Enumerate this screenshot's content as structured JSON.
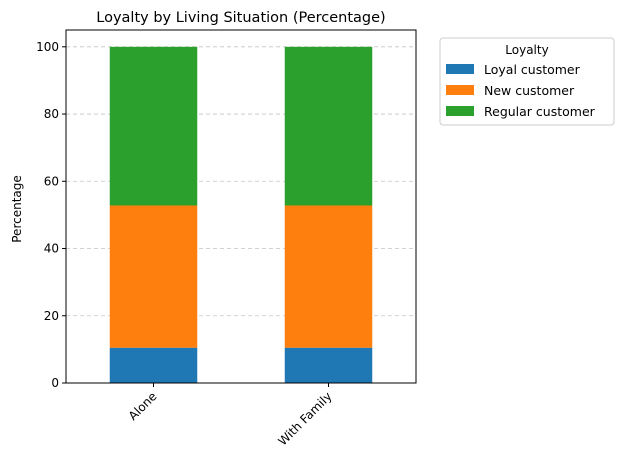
{
  "chart_data": {
    "type": "bar",
    "stacked": true,
    "title": "Loyalty by Living Situation (Percentage)",
    "xlabel": "",
    "ylabel": "Percentage",
    "categories": [
      "Alone",
      "With Family"
    ],
    "series": [
      {
        "name": "Loyal customer",
        "color": "#1f77b4",
        "values": [
          10.5,
          10.5
        ]
      },
      {
        "name": "New customer",
        "color": "#ff7f0e",
        "values": [
          42.3,
          42.3
        ]
      },
      {
        "name": "Regular customer",
        "color": "#2ca02c",
        "values": [
          47.2,
          47.2
        ]
      }
    ],
    "ylim": [
      0,
      105
    ],
    "yticks": [
      0,
      20,
      40,
      60,
      80,
      100
    ],
    "grid": "y",
    "legend": {
      "title": "Loyalty",
      "placement": "outside-top-right"
    }
  }
}
